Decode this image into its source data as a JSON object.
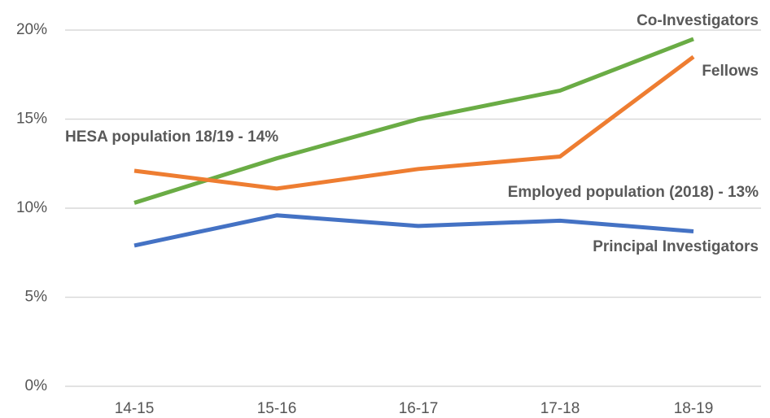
{
  "chart_data": {
    "type": "line",
    "categories": [
      "14-15",
      "15-16",
      "16-17",
      "17-18",
      "18-19"
    ],
    "series": [
      {
        "name": "Co-Investigators",
        "color": "#6aac45",
        "values": [
          10.3,
          12.8,
          15.0,
          16.6,
          19.5
        ]
      },
      {
        "name": "Fellows",
        "color": "#ee7d31",
        "values": [
          12.1,
          11.1,
          12.2,
          12.9,
          18.5
        ]
      },
      {
        "name": "Principal Investigators",
        "color": "#4472c4",
        "values": [
          7.9,
          9.6,
          9.0,
          9.3,
          8.7
        ]
      }
    ],
    "annotations": [
      {
        "text": "HESA population 18/19 - 14%"
      },
      {
        "text": "Employed population (2018) - 13%"
      }
    ],
    "ylim": [
      0,
      20
    ],
    "yticks": [
      {
        "value": 0,
        "label": "0%"
      },
      {
        "value": 5,
        "label": "5%"
      },
      {
        "value": 10,
        "label": "10%"
      },
      {
        "value": 15,
        "label": "15%"
      },
      {
        "value": 20,
        "label": "20%"
      }
    ],
    "grid": true
  }
}
